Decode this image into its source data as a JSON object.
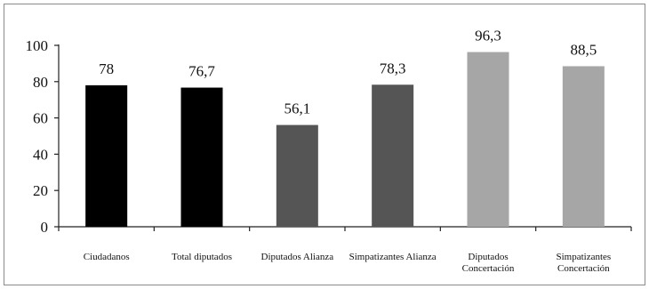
{
  "chart_data": {
    "type": "bar",
    "categories": [
      [
        "Ciudadanos"
      ],
      [
        "Total diputados"
      ],
      [
        "Diputados Alianza"
      ],
      [
        "Simpatizantes Alianza"
      ],
      [
        "Diputados",
        "Concertación"
      ],
      [
        "Simpatizantes",
        "Concertación"
      ]
    ],
    "values": [
      78,
      76.7,
      56.1,
      78.3,
      96.3,
      88.5
    ],
    "value_labels": [
      "78",
      "76,7",
      "56,1",
      "78,3",
      "96,3",
      "88,5"
    ],
    "bar_colors": [
      "#000000",
      "#000000",
      "#555555",
      "#555555",
      "#a6a6a6",
      "#a6a6a6"
    ],
    "ylim": [
      0,
      100
    ],
    "yticks": [
      0,
      20,
      40,
      60,
      80,
      100
    ],
    "ytick_labels": [
      "0",
      "20",
      "40",
      "60",
      "80",
      "100"
    ],
    "title": "",
    "xlabel": "",
    "ylabel": "",
    "grid": false,
    "legend": false
  }
}
